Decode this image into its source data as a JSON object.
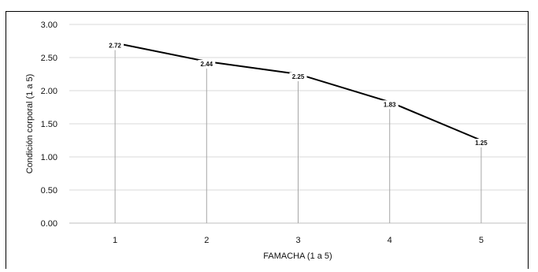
{
  "chart_data": {
    "type": "line",
    "title": "",
    "xlabel": "FAMACHA (1 a 5)",
    "ylabel": "Condición corporal (1 a 5)",
    "categories": [
      "1",
      "2",
      "3",
      "4",
      "5"
    ],
    "x": [
      1,
      2,
      3,
      4,
      5
    ],
    "values": [
      2.72,
      2.44,
      2.25,
      1.83,
      1.25
    ],
    "data_labels": [
      "2.72",
      "2.44",
      "2.25",
      "1.83",
      "1.25"
    ],
    "ylim": [
      0,
      3
    ],
    "yticks": [
      "0.00",
      "0.50",
      "1.00",
      "1.50",
      "2.00",
      "2.50",
      "3.00"
    ],
    "grid": true,
    "drop_lines": true,
    "colors": {
      "line": "#000000",
      "grid": "#d9d9d9",
      "drop": "#a6a6a6"
    }
  }
}
